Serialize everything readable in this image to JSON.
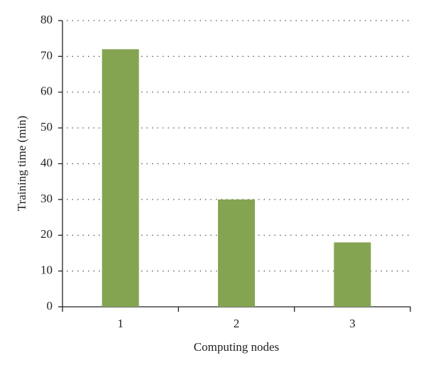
{
  "chart_data": {
    "type": "bar",
    "x_label": "Computing nodes",
    "y_label": "Training time (min)",
    "categories": [
      "1",
      "2",
      "3"
    ],
    "values": [
      72,
      30,
      18
    ],
    "color": "#84a452",
    "ylim": [
      0,
      80
    ],
    "yticks": [
      0,
      10,
      20,
      30,
      40,
      50,
      60,
      70,
      80
    ],
    "grid": true
  }
}
